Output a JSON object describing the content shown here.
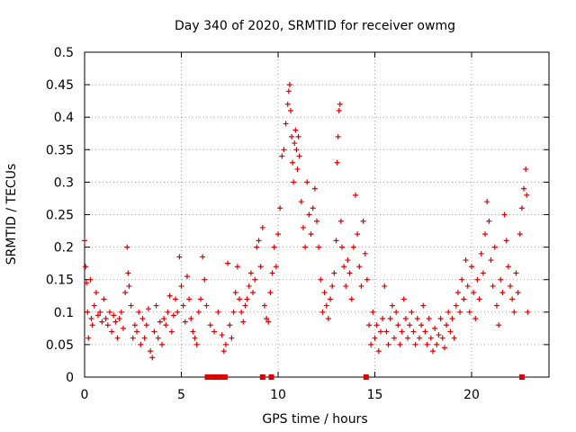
{
  "chart_data": {
    "type": "scatter",
    "title": "Day 340 of 2020, SRMTID for receiver owmg",
    "xlabel": "GPS time / hours",
    "ylabel": "SRMTID / TECUs",
    "xlim": [
      0,
      24
    ],
    "ylim": [
      0,
      0.5
    ],
    "xticks": [
      0,
      5,
      10,
      15,
      20
    ],
    "xtick_labels": [
      "0",
      "5",
      "10",
      "15",
      "20"
    ],
    "yticks": [
      0,
      0.05,
      0.1,
      0.15,
      0.2,
      0.25,
      0.3,
      0.35,
      0.4,
      0.45,
      0.5
    ],
    "ytick_labels": [
      "0",
      "0.05",
      "0.1",
      "0.15",
      "0.2",
      "0.25",
      "0.3",
      "0.35",
      "0.4",
      "0.45",
      "0.5"
    ],
    "grid": true,
    "marker": "plus",
    "color": "#dd0000",
    "series": [
      {
        "name": "SRMTID",
        "points": [
          [
            0.0,
            0.21
          ],
          [
            0.05,
            0.17
          ],
          [
            0.1,
            0.145
          ],
          [
            0.15,
            0.1
          ],
          [
            0.2,
            0.06
          ],
          [
            0.3,
            0.15
          ],
          [
            0.35,
            0.09
          ],
          [
            0.4,
            0.08
          ],
          [
            0.5,
            0.11
          ],
          [
            0.6,
            0.13
          ],
          [
            0.7,
            0.095
          ],
          [
            0.8,
            0.1
          ],
          [
            0.9,
            0.085
          ],
          [
            1.0,
            0.12
          ],
          [
            1.1,
            0.09
          ],
          [
            1.2,
            0.08
          ],
          [
            1.3,
            0.1
          ],
          [
            1.4,
            0.07
          ],
          [
            1.5,
            0.095
          ],
          [
            1.6,
            0.085
          ],
          [
            1.7,
            0.06
          ],
          [
            1.8,
            0.09
          ],
          [
            1.9,
            0.1
          ],
          [
            2.0,
            0.075
          ],
          [
            2.1,
            0.13
          ],
          [
            2.2,
            0.2
          ],
          [
            2.25,
            0.16
          ],
          [
            2.3,
            0.14
          ],
          [
            2.4,
            0.11
          ],
          [
            2.5,
            0.06
          ],
          [
            2.6,
            0.08
          ],
          [
            2.7,
            0.07
          ],
          [
            2.8,
            0.1
          ],
          [
            2.9,
            0.05
          ],
          [
            3.0,
            0.09
          ],
          [
            3.1,
            0.06
          ],
          [
            3.2,
            0.08
          ],
          [
            3.3,
            0.105
          ],
          [
            3.4,
            0.04
          ],
          [
            3.5,
            0.03
          ],
          [
            3.6,
            0.07
          ],
          [
            3.7,
            0.11
          ],
          [
            3.8,
            0.06
          ],
          [
            3.9,
            0.085
          ],
          [
            4.0,
            0.05
          ],
          [
            4.1,
            0.09
          ],
          [
            4.2,
            0.08
          ],
          [
            4.3,
            0.1
          ],
          [
            4.4,
            0.125
          ],
          [
            4.5,
            0.07
          ],
          [
            4.6,
            0.095
          ],
          [
            4.7,
            0.12
          ],
          [
            4.8,
            0.1
          ],
          [
            4.9,
            0.185
          ],
          [
            5.0,
            0.14
          ],
          [
            5.1,
            0.11
          ],
          [
            5.2,
            0.085
          ],
          [
            5.3,
            0.155
          ],
          [
            5.4,
            0.12
          ],
          [
            5.5,
            0.09
          ],
          [
            5.6,
            0.07
          ],
          [
            5.7,
            0.06
          ],
          [
            5.8,
            0.05
          ],
          [
            5.9,
            0.1
          ],
          [
            6.0,
            0.12
          ],
          [
            6.1,
            0.185
          ],
          [
            6.2,
            0.15
          ],
          [
            6.3,
            0.11
          ],
          [
            6.5,
            0.08
          ],
          [
            6.7,
            0.07
          ],
          [
            6.9,
            0.1
          ],
          [
            7.1,
            0.065
          ],
          [
            7.2,
            0.04
          ],
          [
            7.3,
            0.05
          ],
          [
            7.4,
            0.175
          ],
          [
            7.5,
            0.08
          ],
          [
            7.6,
            0.06
          ],
          [
            7.7,
            0.1
          ],
          [
            7.8,
            0.13
          ],
          [
            7.9,
            0.17
          ],
          [
            8.0,
            0.12
          ],
          [
            8.1,
            0.1
          ],
          [
            8.2,
            0.085
          ],
          [
            8.3,
            0.11
          ],
          [
            8.4,
            0.12
          ],
          [
            8.5,
            0.14
          ],
          [
            8.6,
            0.16
          ],
          [
            8.7,
            0.13
          ],
          [
            8.8,
            0.15
          ],
          [
            8.9,
            0.2
          ],
          [
            9.0,
            0.21
          ],
          [
            9.1,
            0.17
          ],
          [
            9.2,
            0.23
          ],
          [
            9.3,
            0.11
          ],
          [
            9.4,
            0.09
          ],
          [
            9.5,
            0.085
          ],
          [
            9.6,
            0.13
          ],
          [
            9.7,
            0.16
          ],
          [
            9.8,
            0.2
          ],
          [
            9.9,
            0.17
          ],
          [
            10.0,
            0.22
          ],
          [
            10.1,
            0.26
          ],
          [
            10.2,
            0.34
          ],
          [
            10.3,
            0.35
          ],
          [
            10.4,
            0.39
          ],
          [
            10.5,
            0.42
          ],
          [
            10.55,
            0.44
          ],
          [
            10.6,
            0.45
          ],
          [
            10.65,
            0.41
          ],
          [
            10.7,
            0.37
          ],
          [
            10.75,
            0.33
          ],
          [
            10.8,
            0.3
          ],
          [
            10.85,
            0.36
          ],
          [
            10.9,
            0.38
          ],
          [
            10.95,
            0.35
          ],
          [
            11.0,
            0.32
          ],
          [
            11.05,
            0.37
          ],
          [
            11.1,
            0.34
          ],
          [
            11.2,
            0.27
          ],
          [
            11.3,
            0.23
          ],
          [
            11.4,
            0.2
          ],
          [
            11.5,
            0.3
          ],
          [
            11.6,
            0.25
          ],
          [
            11.7,
            0.22
          ],
          [
            11.8,
            0.26
          ],
          [
            11.9,
            0.29
          ],
          [
            12.0,
            0.24
          ],
          [
            12.1,
            0.2
          ],
          [
            12.2,
            0.15
          ],
          [
            12.3,
            0.1
          ],
          [
            12.4,
            0.13
          ],
          [
            12.5,
            0.11
          ],
          [
            12.6,
            0.09
          ],
          [
            12.7,
            0.12
          ],
          [
            12.8,
            0.14
          ],
          [
            12.9,
            0.16
          ],
          [
            13.0,
            0.21
          ],
          [
            13.05,
            0.33
          ],
          [
            13.1,
            0.37
          ],
          [
            13.15,
            0.41
          ],
          [
            13.2,
            0.42
          ],
          [
            13.25,
            0.24
          ],
          [
            13.3,
            0.2
          ],
          [
            13.4,
            0.17
          ],
          [
            13.5,
            0.14
          ],
          [
            13.6,
            0.18
          ],
          [
            13.7,
            0.16
          ],
          [
            13.8,
            0.12
          ],
          [
            13.9,
            0.2
          ],
          [
            14.0,
            0.28
          ],
          [
            14.1,
            0.22
          ],
          [
            14.2,
            0.17
          ],
          [
            14.3,
            0.14
          ],
          [
            14.4,
            0.24
          ],
          [
            14.5,
            0.19
          ],
          [
            14.6,
            0.15
          ],
          [
            14.7,
            0.08
          ],
          [
            14.8,
            0.05
          ],
          [
            14.9,
            0.1
          ],
          [
            15.0,
            0.06
          ],
          [
            15.1,
            0.08
          ],
          [
            15.2,
            0.04
          ],
          [
            15.3,
            0.07
          ],
          [
            15.4,
            0.09
          ],
          [
            15.5,
            0.14
          ],
          [
            15.6,
            0.07
          ],
          [
            15.7,
            0.05
          ],
          [
            15.8,
            0.09
          ],
          [
            15.9,
            0.11
          ],
          [
            16.0,
            0.06
          ],
          [
            16.1,
            0.1
          ],
          [
            16.2,
            0.08
          ],
          [
            16.3,
            0.05
          ],
          [
            16.4,
            0.07
          ],
          [
            16.5,
            0.12
          ],
          [
            16.6,
            0.09
          ],
          [
            16.7,
            0.06
          ],
          [
            16.8,
            0.08
          ],
          [
            16.9,
            0.1
          ],
          [
            17.0,
            0.07
          ],
          [
            17.1,
            0.05
          ],
          [
            17.2,
            0.09
          ],
          [
            17.3,
            0.06
          ],
          [
            17.4,
            0.08
          ],
          [
            17.5,
            0.11
          ],
          [
            17.6,
            0.07
          ],
          [
            17.7,
            0.05
          ],
          [
            17.8,
            0.09
          ],
          [
            17.9,
            0.06
          ],
          [
            18.0,
            0.04
          ],
          [
            18.1,
            0.075
          ],
          [
            18.2,
            0.05
          ],
          [
            18.3,
            0.065
          ],
          [
            18.4,
            0.09
          ],
          [
            18.5,
            0.06
          ],
          [
            18.6,
            0.045
          ],
          [
            18.7,
            0.08
          ],
          [
            18.8,
            0.1
          ],
          [
            18.9,
            0.07
          ],
          [
            19.0,
            0.09
          ],
          [
            19.1,
            0.06
          ],
          [
            19.2,
            0.11
          ],
          [
            19.3,
            0.13
          ],
          [
            19.4,
            0.1
          ],
          [
            19.5,
            0.15
          ],
          [
            19.6,
            0.12
          ],
          [
            19.7,
            0.18
          ],
          [
            19.8,
            0.14
          ],
          [
            19.9,
            0.1
          ],
          [
            20.0,
            0.17
          ],
          [
            20.1,
            0.13
          ],
          [
            20.2,
            0.09
          ],
          [
            20.3,
            0.15
          ],
          [
            20.4,
            0.12
          ],
          [
            20.5,
            0.19
          ],
          [
            20.6,
            0.16
          ],
          [
            20.7,
            0.22
          ],
          [
            20.8,
            0.27
          ],
          [
            20.9,
            0.24
          ],
          [
            21.0,
            0.18
          ],
          [
            21.1,
            0.14
          ],
          [
            21.2,
            0.2
          ],
          [
            21.3,
            0.11
          ],
          [
            21.4,
            0.08
          ],
          [
            21.5,
            0.15
          ],
          [
            21.6,
            0.13
          ],
          [
            21.7,
            0.25
          ],
          [
            21.8,
            0.21
          ],
          [
            21.9,
            0.17
          ],
          [
            22.0,
            0.14
          ],
          [
            22.1,
            0.12
          ],
          [
            22.2,
            0.1
          ],
          [
            22.3,
            0.16
          ],
          [
            22.4,
            0.13
          ],
          [
            22.5,
            0.22
          ],
          [
            22.6,
            0.26
          ],
          [
            22.7,
            0.29
          ],
          [
            22.8,
            0.32
          ],
          [
            22.85,
            0.28
          ],
          [
            22.9,
            0.1
          ]
        ]
      }
    ],
    "zero_markers_x": [
      6.35,
      6.5,
      6.65,
      6.8,
      6.95,
      7.1,
      7.25,
      9.2,
      9.65,
      14.55,
      22.6
    ]
  }
}
